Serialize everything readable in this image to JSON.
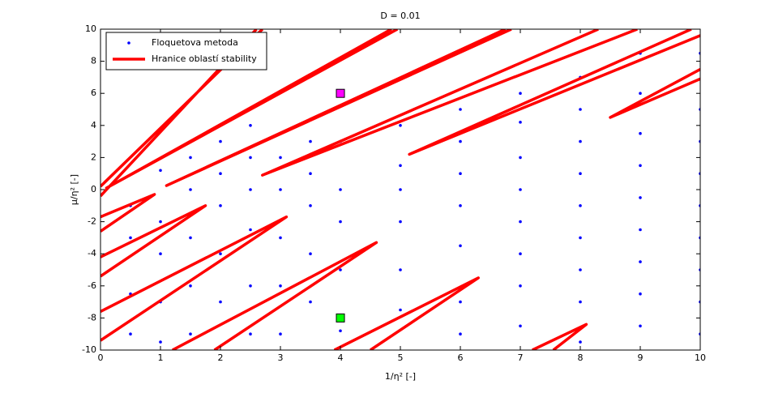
{
  "chart_data": {
    "type": "scatter",
    "title": "D = 0.01",
    "x_label": "1/η² [-]",
    "y_label": "μ/η² [-]",
    "xlim": [
      0,
      10
    ],
    "ylim": [
      -10,
      10
    ],
    "xticks": [
      0,
      1,
      2,
      3,
      4,
      5,
      6,
      7,
      8,
      9,
      10
    ],
    "yticks": [
      -10,
      -8,
      -6,
      -4,
      -2,
      0,
      2,
      4,
      6,
      8,
      10
    ],
    "legend": "upper left",
    "series": [
      {
        "name": "Floquetova metoda",
        "type": "scatter",
        "color": "#0000ff",
        "x": [
          0.5,
          0.5,
          0.5,
          0.5,
          1,
          1,
          1,
          1,
          1,
          1.5,
          1.5,
          1.5,
          1.5,
          1.5,
          2,
          2,
          2,
          2,
          2,
          2.5,
          2.5,
          2.5,
          2.5,
          2.5,
          2.5,
          3,
          3,
          3,
          3,
          3,
          3.5,
          3.5,
          3.5,
          3.5,
          3.5,
          4,
          4,
          4,
          4,
          4,
          5,
          5,
          5,
          5,
          5,
          5,
          6,
          6,
          6,
          6,
          6,
          6,
          6,
          7,
          7,
          7,
          7,
          7,
          7,
          7,
          7,
          8,
          8,
          8,
          8,
          8,
          8,
          8,
          8,
          8,
          9,
          9,
          9,
          9,
          9,
          9,
          9,
          9,
          9,
          10,
          10,
          10,
          10,
          10,
          10,
          10,
          10,
          10
        ],
        "y": [
          -1,
          -3,
          -6.5,
          -9,
          -2,
          -4,
          -7,
          -9.5,
          1.2,
          0,
          -3,
          -6,
          -9,
          2,
          1,
          -1,
          -4,
          -7,
          3,
          0,
          -2.5,
          -6,
          -9,
          2,
          4,
          0,
          -3,
          -6,
          -9,
          2,
          1,
          -1,
          -4,
          -7,
          3,
          0,
          -2,
          -5,
          -8.8,
          3,
          0,
          -2,
          -5,
          -7.5,
          4,
          1.5,
          1,
          -1,
          -3.5,
          -7,
          -9,
          3,
          5,
          0,
          -2,
          -4,
          -6,
          -8.5,
          2,
          4.2,
          6,
          -1,
          -3,
          -5,
          -7,
          -9.5,
          1,
          3,
          5,
          7,
          -0.5,
          -2.5,
          -4.5,
          -6.5,
          -8.5,
          1.5,
          3.5,
          6,
          8.5,
          -1,
          -3,
          -5,
          -7,
          -9,
          1,
          3,
          5,
          8.5
        ]
      },
      {
        "name": "Hranice oblastí stability",
        "type": "line",
        "color": "#ff0000",
        "x": [
          0,
          2.6,
          null,
          0,
          2.7,
          null,
          4.95,
          0.1,
          4.85,
          null,
          6.85,
          1.1,
          6.75,
          null,
          8.3,
          2.7,
          8.95,
          null,
          9.85,
          5.15,
          10,
          null,
          10,
          8.5,
          10,
          null,
          0,
          0.9,
          0,
          null,
          0,
          1.75,
          0,
          null,
          0,
          3.1,
          0,
          null,
          1.2,
          4.6,
          1.9,
          null,
          3.9,
          6.3,
          4.5,
          null,
          7.2,
          8.1,
          7.55
        ],
        "y": [
          -0.4,
          10,
          null,
          0.2,
          10,
          null,
          10,
          0.1,
          10,
          null,
          10,
          0.25,
          10,
          null,
          10,
          0.9,
          10,
          null,
          10,
          2.2,
          9.6,
          null,
          7.5,
          4.5,
          6.9,
          null,
          -1.7,
          -0.3,
          -2.6,
          null,
          -4.2,
          -1,
          -5.4,
          null,
          -7.6,
          -1.7,
          -9.4,
          null,
          -10,
          -3.3,
          -10,
          null,
          -10,
          -5.5,
          -10,
          null,
          -10,
          -8.4,
          -10
        ]
      }
    ],
    "markers": [
      {
        "x": 4,
        "y": 6,
        "color": "#ff00ff"
      },
      {
        "x": 4,
        "y": -8,
        "color": "#00ff00"
      }
    ]
  }
}
